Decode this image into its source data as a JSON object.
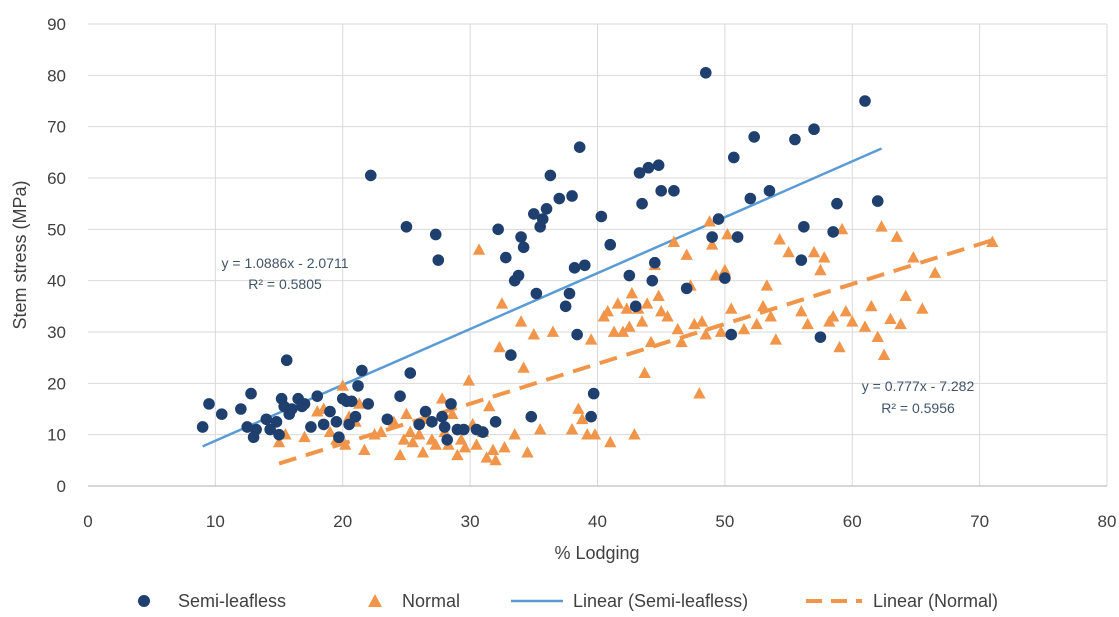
{
  "chart_data": {
    "type": "scatter",
    "xlabel": "% Lodging",
    "ylabel": "Stem stress (MPa)",
    "xlim": [
      0,
      80
    ],
    "ylim": [
      0,
      90
    ],
    "x_ticks": [
      "0",
      "10",
      "20",
      "30",
      "40",
      "50",
      "60",
      "70",
      "80"
    ],
    "y_ticks": [
      "0",
      "10",
      "20",
      "30",
      "40",
      "50",
      "60",
      "70",
      "80",
      "90"
    ],
    "grid": true,
    "legend_position": "bottom",
    "series": [
      {
        "name": "Semi-leafless",
        "marker": "circle",
        "color": "#1f3f6e",
        "points": [
          [
            9,
            11.5
          ],
          [
            9.5,
            16
          ],
          [
            10.5,
            14
          ],
          [
            12,
            15
          ],
          [
            12.5,
            11.5
          ],
          [
            12.8,
            18
          ],
          [
            13,
            9.5
          ],
          [
            13.2,
            11
          ],
          [
            14,
            13
          ],
          [
            14.3,
            11
          ],
          [
            14.8,
            12.5
          ],
          [
            15,
            10
          ],
          [
            15.2,
            17
          ],
          [
            15.4,
            15.5
          ],
          [
            15.6,
            24.5
          ],
          [
            15.8,
            14
          ],
          [
            16,
            15
          ],
          [
            16.5,
            17
          ],
          [
            16.8,
            15.5
          ],
          [
            17,
            16
          ],
          [
            17.5,
            11.5
          ],
          [
            18,
            17.5
          ],
          [
            18.5,
            12
          ],
          [
            19,
            14.5
          ],
          [
            19.5,
            12.5
          ],
          [
            19.7,
            9.5
          ],
          [
            20,
            17
          ],
          [
            20.3,
            16.5
          ],
          [
            20.5,
            12
          ],
          [
            20.7,
            16.5
          ],
          [
            21,
            13.5
          ],
          [
            21.2,
            19.5
          ],
          [
            21.5,
            22.5
          ],
          [
            22,
            16
          ],
          [
            22.2,
            60.5
          ],
          [
            23.5,
            13
          ],
          [
            24.5,
            17.5
          ],
          [
            25,
            50.5
          ],
          [
            25.3,
            22
          ],
          [
            26,
            12
          ],
          [
            26.5,
            14.5
          ],
          [
            27,
            12.5
          ],
          [
            27.3,
            49
          ],
          [
            27.5,
            44
          ],
          [
            27.8,
            13.5
          ],
          [
            28,
            11.5
          ],
          [
            28.2,
            9
          ],
          [
            28.5,
            16
          ],
          [
            29,
            11
          ],
          [
            29.5,
            11
          ],
          [
            30.5,
            11
          ],
          [
            31,
            10.5
          ],
          [
            32,
            12.5
          ],
          [
            32.2,
            50
          ],
          [
            32.8,
            44.5
          ],
          [
            33.2,
            25.5
          ],
          [
            33.5,
            40
          ],
          [
            33.8,
            41
          ],
          [
            34,
            48.5
          ],
          [
            34.2,
            46.5
          ],
          [
            34.8,
            13.5
          ],
          [
            35,
            53
          ],
          [
            35.2,
            37.5
          ],
          [
            35.5,
            50.5
          ],
          [
            35.7,
            52
          ],
          [
            36,
            54
          ],
          [
            36.3,
            60.5
          ],
          [
            37,
            56
          ],
          [
            37.5,
            35
          ],
          [
            37.8,
            37.5
          ],
          [
            38,
            56.5
          ],
          [
            38.2,
            42.5
          ],
          [
            38.4,
            29.5
          ],
          [
            38.6,
            66
          ],
          [
            39,
            43
          ],
          [
            39.5,
            13.5
          ],
          [
            39.7,
            18
          ],
          [
            40.3,
            52.5
          ],
          [
            41,
            47
          ],
          [
            42.5,
            41
          ],
          [
            43,
            35
          ],
          [
            43.3,
            61
          ],
          [
            43.5,
            55
          ],
          [
            44,
            62
          ],
          [
            44.3,
            40
          ],
          [
            44.5,
            43.5
          ],
          [
            44.8,
            62.5
          ],
          [
            45,
            57.5
          ],
          [
            46,
            57.5
          ],
          [
            47,
            38.5
          ],
          [
            48.5,
            80.5
          ],
          [
            49,
            48.5
          ],
          [
            49.5,
            52
          ],
          [
            50,
            40.5
          ],
          [
            50.5,
            29.5
          ],
          [
            50.7,
            64
          ],
          [
            51,
            48.5
          ],
          [
            52,
            56
          ],
          [
            52.3,
            68
          ],
          [
            53.5,
            57.5
          ],
          [
            55.5,
            67.5
          ],
          [
            56,
            44
          ],
          [
            56.2,
            50.5
          ],
          [
            57,
            69.5
          ],
          [
            57.5,
            29
          ],
          [
            58.5,
            49.5
          ],
          [
            58.8,
            55
          ],
          [
            61,
            75
          ],
          [
            62,
            55.5
          ]
        ]
      },
      {
        "name": "Normal",
        "marker": "triangle",
        "color": "#f0954a",
        "points": [
          [
            15,
            8.5
          ],
          [
            15.5,
            10
          ],
          [
            17,
            9.5
          ],
          [
            18,
            14.5
          ],
          [
            18.5,
            15
          ],
          [
            19,
            10.5
          ],
          [
            19.5,
            9
          ],
          [
            20,
            19.5
          ],
          [
            20.2,
            8
          ],
          [
            20.5,
            13.5
          ],
          [
            21,
            12.5
          ],
          [
            21.3,
            16
          ],
          [
            21.7,
            7
          ],
          [
            22.5,
            10
          ],
          [
            23,
            10.5
          ],
          [
            24,
            12.5
          ],
          [
            24.5,
            6
          ],
          [
            24.8,
            9
          ],
          [
            25,
            14
          ],
          [
            25.3,
            10.5
          ],
          [
            25.5,
            8.5
          ],
          [
            26,
            10
          ],
          [
            26.3,
            6.5
          ],
          [
            26.5,
            13
          ],
          [
            27,
            9
          ],
          [
            27.3,
            8
          ],
          [
            27.8,
            17
          ],
          [
            28,
            10.5
          ],
          [
            28.3,
            8
          ],
          [
            28.6,
            14
          ],
          [
            29,
            6
          ],
          [
            29.3,
            9
          ],
          [
            29.6,
            7.5
          ],
          [
            29.9,
            20.5
          ],
          [
            30.2,
            12
          ],
          [
            30.5,
            8
          ],
          [
            30.7,
            46
          ],
          [
            31,
            10.5
          ],
          [
            31.3,
            5.5
          ],
          [
            31.5,
            15.5
          ],
          [
            31.8,
            7
          ],
          [
            32,
            5
          ],
          [
            32.3,
            27
          ],
          [
            32.5,
            35.5
          ],
          [
            32.7,
            7.5
          ],
          [
            33.5,
            10
          ],
          [
            34,
            32
          ],
          [
            34.2,
            23
          ],
          [
            34.5,
            6.5
          ],
          [
            35,
            29.5
          ],
          [
            35.5,
            11
          ],
          [
            36.5,
            30
          ],
          [
            38,
            11
          ],
          [
            38.5,
            15
          ],
          [
            38.8,
            13
          ],
          [
            39.2,
            10
          ],
          [
            39.5,
            28.5
          ],
          [
            39.8,
            10
          ],
          [
            40.5,
            33
          ],
          [
            40.8,
            34
          ],
          [
            41,
            8.5
          ],
          [
            41.3,
            30
          ],
          [
            41.6,
            35.5
          ],
          [
            42,
            30
          ],
          [
            42.3,
            34.5
          ],
          [
            42.5,
            31
          ],
          [
            42.7,
            37.5
          ],
          [
            42.9,
            10
          ],
          [
            43.2,
            34.5
          ],
          [
            43.5,
            32
          ],
          [
            43.7,
            22
          ],
          [
            43.9,
            35.5
          ],
          [
            44.2,
            28
          ],
          [
            44.5,
            43
          ],
          [
            44.8,
            37
          ],
          [
            45,
            34
          ],
          [
            45.5,
            33
          ],
          [
            46,
            47.5
          ],
          [
            46.3,
            30.5
          ],
          [
            46.6,
            28
          ],
          [
            47,
            45
          ],
          [
            47.3,
            39
          ],
          [
            47.6,
            31.5
          ],
          [
            48,
            18
          ],
          [
            48.2,
            32
          ],
          [
            48.5,
            29.5
          ],
          [
            48.8,
            51.5
          ],
          [
            49,
            47
          ],
          [
            49.3,
            41
          ],
          [
            49.7,
            30
          ],
          [
            50,
            42
          ],
          [
            50.2,
            49
          ],
          [
            50.5,
            34.5
          ],
          [
            51.5,
            30.5
          ],
          [
            52.5,
            31.5
          ],
          [
            53,
            35
          ],
          [
            53.3,
            39
          ],
          [
            53.6,
            33
          ],
          [
            54,
            28.5
          ],
          [
            54.3,
            48
          ],
          [
            55,
            45.5
          ],
          [
            56,
            34
          ],
          [
            56.5,
            31.5
          ],
          [
            57,
            45.5
          ],
          [
            57.5,
            42
          ],
          [
            57.8,
            44.5
          ],
          [
            58.2,
            32
          ],
          [
            58.5,
            33
          ],
          [
            59,
            27
          ],
          [
            59.2,
            50
          ],
          [
            59.5,
            34
          ],
          [
            60,
            32
          ],
          [
            61,
            31
          ],
          [
            61.5,
            35
          ],
          [
            62,
            29
          ],
          [
            62.3,
            50.5
          ],
          [
            62.5,
            25.5
          ],
          [
            63,
            32.5
          ],
          [
            63.5,
            48.5
          ],
          [
            63.8,
            31.5
          ],
          [
            64.2,
            37
          ],
          [
            64.8,
            44.5
          ],
          [
            65.5,
            34.5
          ],
          [
            66.5,
            41.5
          ],
          [
            71,
            47.5
          ]
        ]
      }
    ],
    "trendlines": [
      {
        "name": "Linear (Semi-leafless)",
        "color": "#5b9bd5",
        "style": "solid",
        "slope": 1.0886,
        "intercept": -2.0711,
        "x_range": [
          9,
          62.3
        ],
        "equation": "y = 1.0886x - 2.0711",
        "r2": "R² = 0.5805"
      },
      {
        "name": "Linear (Normal)",
        "color": "#f0954a",
        "style": "dashed",
        "slope": 0.777,
        "intercept": -7.282,
        "x_range": [
          15,
          71
        ],
        "equation": "y = 0.777x - 7.282",
        "r2": "R² = 0.5956"
      }
    ]
  }
}
